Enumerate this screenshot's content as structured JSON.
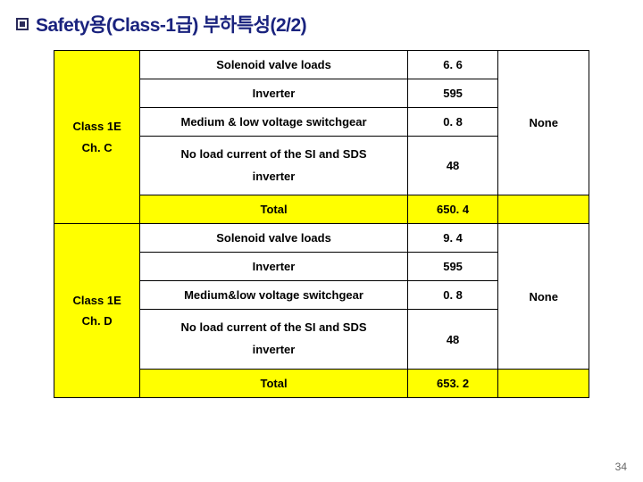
{
  "title": "Safety용(Class-1급) 부하특성(2/2)",
  "page_number": "34",
  "blocks": [
    {
      "head1": "Class 1E",
      "head2": "Ch. C",
      "rows": [
        {
          "label": "Solenoid valve loads",
          "value": "6. 6"
        },
        {
          "label": "Inverter",
          "value": "595"
        },
        {
          "label": "Medium & low voltage switchgear",
          "value": "0. 8"
        },
        {
          "label": "No load current of the SI and SDS inverter",
          "value": "48",
          "tall": true
        }
      ],
      "total_label": "Total",
      "total_value": "650. 4",
      "remark": "None"
    },
    {
      "head1": "Class 1E",
      "head2": "Ch. D",
      "rows": [
        {
          "label": "Solenoid valve loads",
          "value": "9. 4"
        },
        {
          "label": "Inverter",
          "value": "595"
        },
        {
          "label": "Medium&low voltage switchgear",
          "value": "0. 8"
        },
        {
          "label": "No load current of the SI and SDS inverter",
          "value": "48",
          "tall": true
        }
      ],
      "total_label": "Total",
      "total_value": "653. 2",
      "remark": "None"
    }
  ]
}
